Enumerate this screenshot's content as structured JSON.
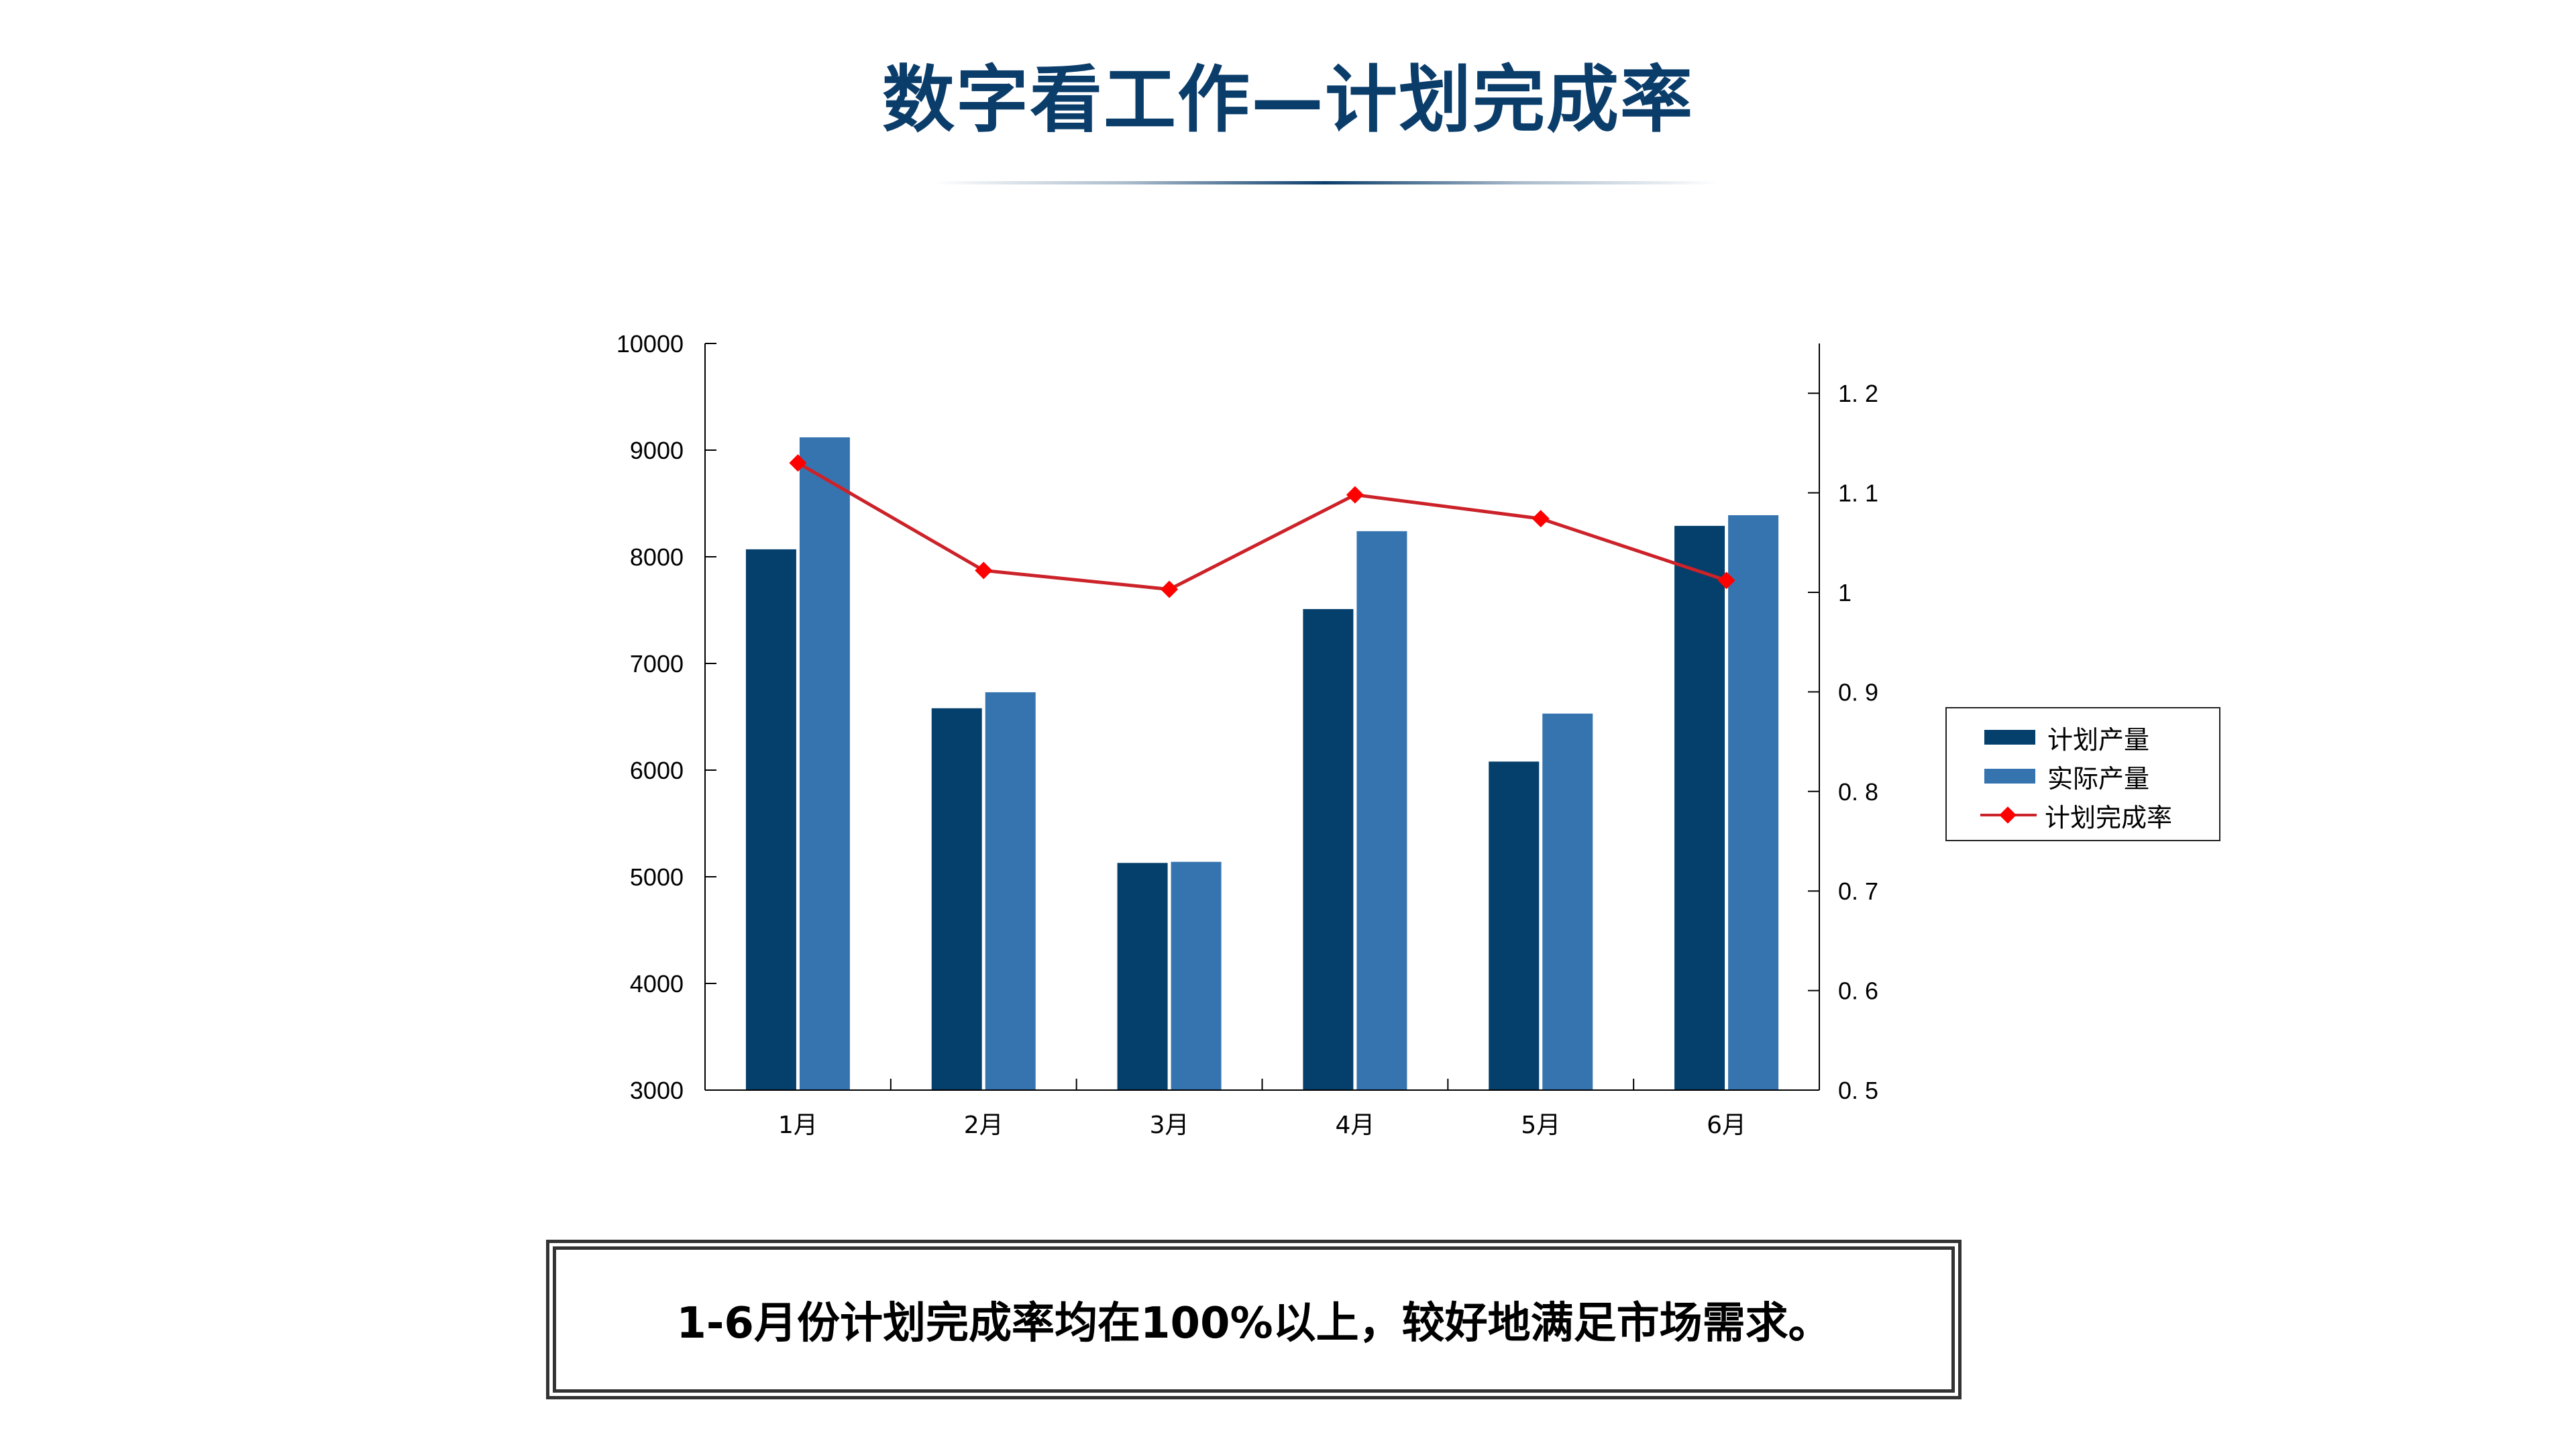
{
  "header": {
    "title": "数字看工作—计划完成率"
  },
  "legend": {
    "items": [
      {
        "label": "计划产量",
        "type": "bar",
        "color": "#053f6b"
      },
      {
        "label": "实际产量",
        "type": "bar",
        "color": "#3674b0"
      },
      {
        "label": "计划完成率",
        "type": "line",
        "color": "#cc2229",
        "marker_color": "#ff0000"
      }
    ]
  },
  "note": {
    "text": "1-6月份计划完成率均在100%以上，较好地满足市场需求。"
  },
  "colors": {
    "title": "#0b3d6b",
    "plan_bar": "#053f6b",
    "actual_bar": "#3674b0",
    "rate_line": "#cc2229",
    "rate_marker": "#ff0000"
  },
  "chart_data": {
    "type": "bar",
    "title": "数字看工作—计划完成率",
    "xlabel": "",
    "ylabel": "",
    "y2label": "",
    "categories": [
      "1月",
      "2月",
      "3月",
      "4月",
      "5月",
      "6月"
    ],
    "series": [
      {
        "name": "计划产量",
        "type": "bar",
        "axis": "left",
        "values": [
          8070,
          6580,
          5130,
          7510,
          6080,
          8290
        ]
      },
      {
        "name": "实际产量",
        "type": "bar",
        "axis": "left",
        "values": [
          9120,
          6730,
          5140,
          8240,
          6530,
          8390
        ]
      },
      {
        "name": "计划完成率",
        "type": "line",
        "axis": "right",
        "marker": "diamond",
        "values": [
          1.13,
          1.022,
          1.003,
          1.098,
          1.074,
          1.012
        ]
      }
    ],
    "ylim": [
      3000,
      10000
    ],
    "y_ticks": [
      "3000",
      "4000",
      "5000",
      "6000",
      "7000",
      "8000",
      "9000",
      "10000"
    ],
    "y2lim": [
      0.5,
      1.25
    ],
    "y2_ticks": [
      "0. 5",
      "0. 6",
      "0. 7",
      "0. 8",
      "0. 9",
      "1",
      "1. 1",
      "1. 2"
    ],
    "grid": false,
    "legend_position": "right"
  }
}
